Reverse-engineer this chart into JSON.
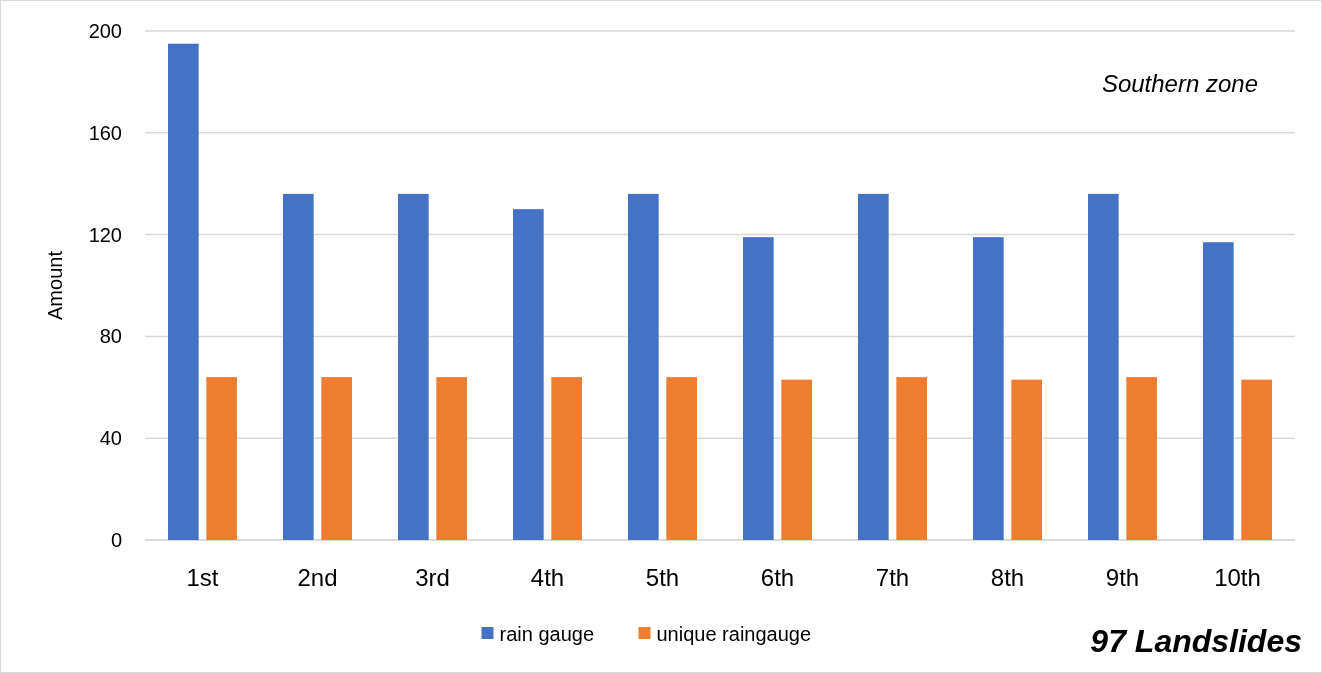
{
  "chart_data": {
    "type": "bar",
    "ylabel": "Amount",
    "categories": [
      "1st",
      "2nd",
      "3rd",
      "4th",
      "5th",
      "6th",
      "7th",
      "8th",
      "9th",
      "10th"
    ],
    "series": [
      {
        "name": "rain gauge",
        "color": "#4472c4",
        "values": [
          195,
          136,
          136,
          130,
          136,
          119,
          136,
          119,
          136,
          117
        ]
      },
      {
        "name": "unique raingauge",
        "color": "#ed7d31",
        "values": [
          64,
          64,
          64,
          64,
          64,
          63,
          64,
          63,
          64,
          63
        ]
      }
    ],
    "ylim": [
      0,
      200
    ],
    "yticks": [
      0,
      40,
      80,
      120,
      160,
      200
    ],
    "grid": "y",
    "legend": "bottom",
    "annotations": [
      "Southern zone",
      "97 Landslides"
    ]
  }
}
